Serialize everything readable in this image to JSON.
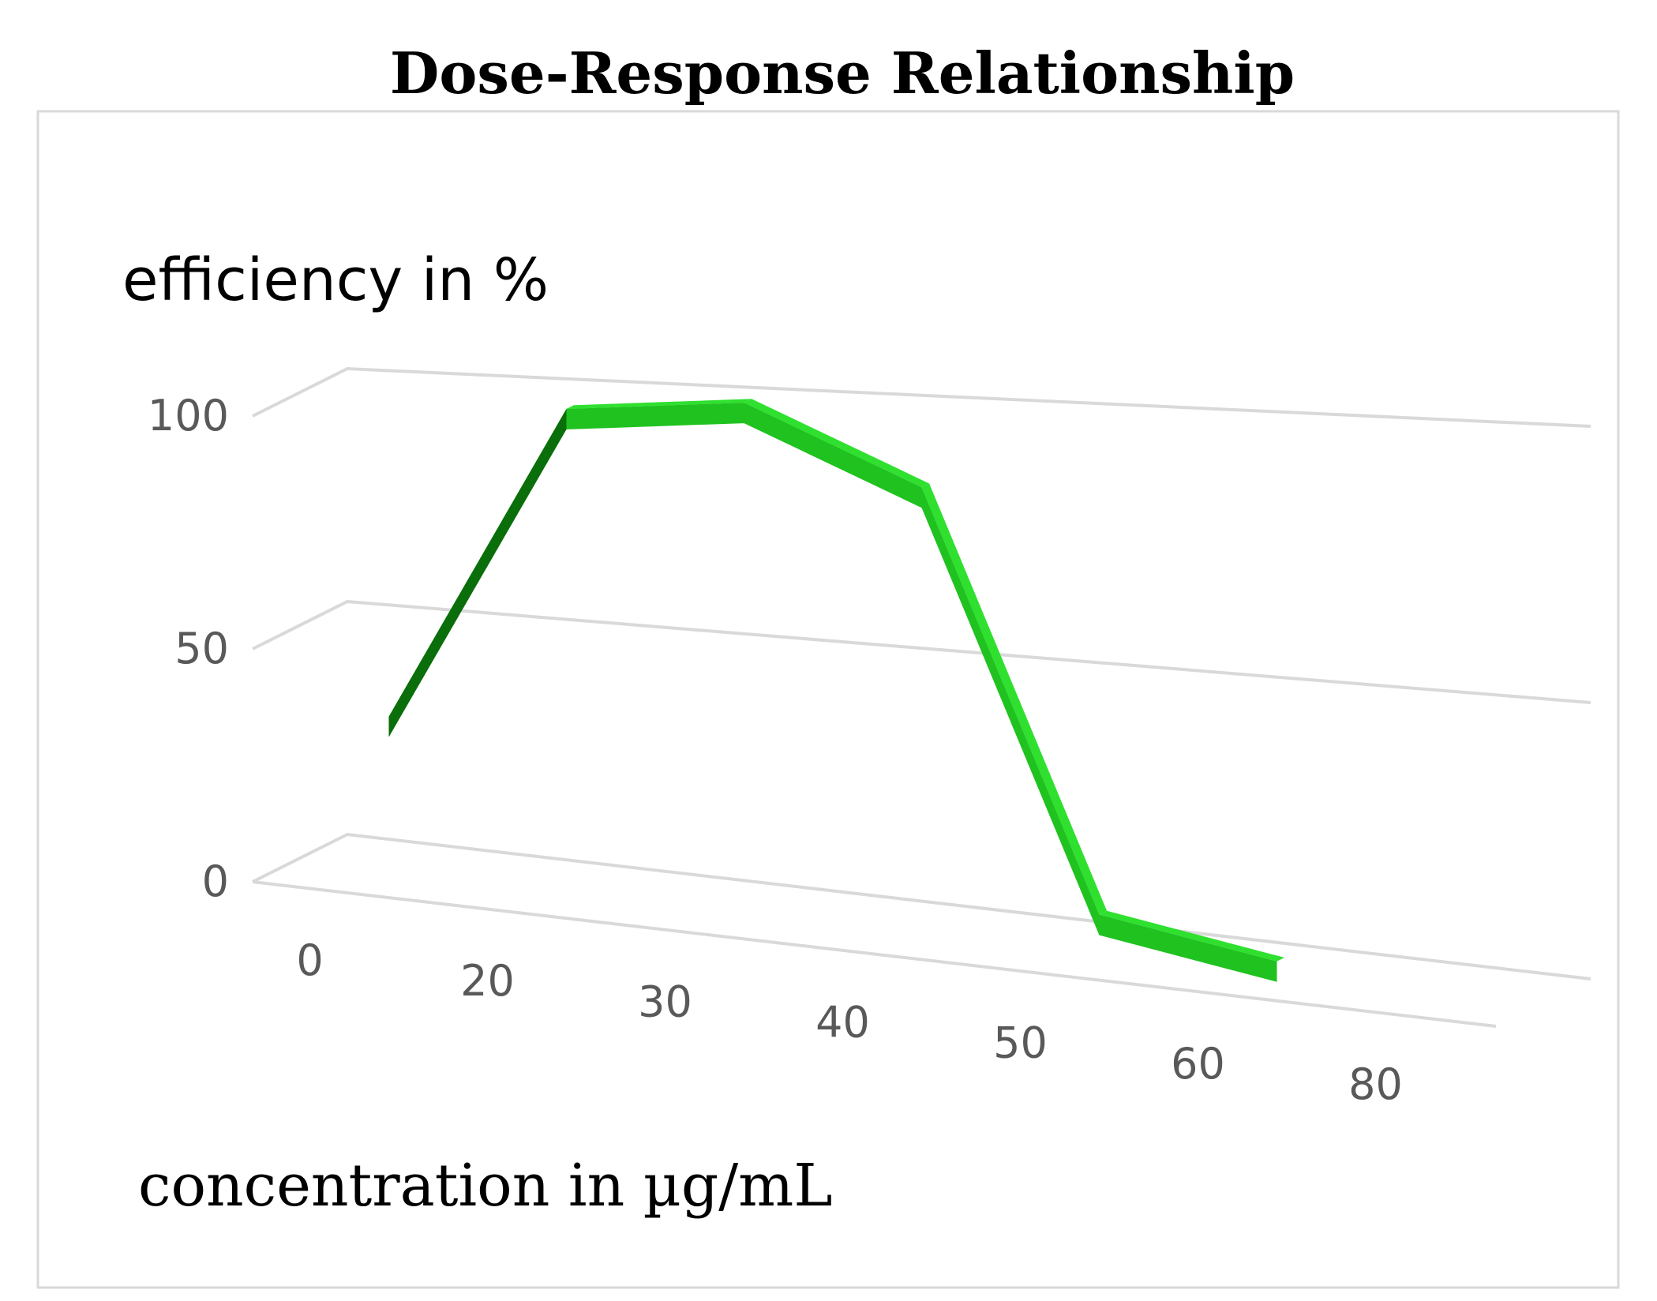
{
  "colors": {
    "line_front": "#1fc21f",
    "line_top": "#2fe02f",
    "line_side": "#0a6e0a",
    "grid": "#d9d9d9",
    "frame": "#d9d9d9"
  },
  "chart_data": {
    "type": "line",
    "style": "3d-ribbon",
    "title": "Dose-Response Relationship",
    "ylabel": "efficiency in %",
    "xlabel": "concentration in µg/mL",
    "categories": [
      "0",
      "20",
      "30",
      "40",
      "50",
      "60",
      "80"
    ],
    "series": [
      {
        "values": [
          30,
          97,
          100,
          85,
          5,
          0,
          null
        ]
      }
    ],
    "y_ticks": [
      "0",
      "50",
      "100"
    ],
    "ylim": [
      0,
      100
    ],
    "grid": true,
    "legend": "none"
  }
}
